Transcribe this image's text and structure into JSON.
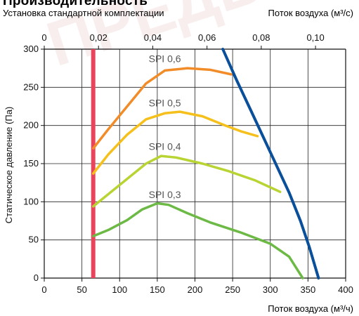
{
  "page": {
    "title": "Производительность",
    "subtitle": "Установка стандартной комплектации",
    "watermark": "ПРЕДВ"
  },
  "chart_data": {
    "type": "line",
    "title": "Производительность",
    "subtitle": "Установка стандартной комплектации",
    "xlabel": "Поток воздуха (м³/ч)",
    "ylabel": "Статическое давление (Па)",
    "x2label": "Поток воздуха (м³/с)",
    "xlim": [
      0,
      400
    ],
    "ylim": [
      0,
      300
    ],
    "x_ticks": [
      0,
      50,
      100,
      150,
      200,
      250,
      300,
      350,
      400
    ],
    "y_ticks": [
      0,
      50,
      100,
      150,
      200,
      250,
      300
    ],
    "x2_ticks": [
      "0",
      "0,02",
      "0,04",
      "0,06",
      "0,08",
      "0,10"
    ],
    "x2_tick_values": [
      0,
      72,
      144,
      216,
      288,
      360
    ],
    "grid": true,
    "series": [
      {
        "name": "SPI 0,6",
        "color": "#f28c28",
        "points": [
          [
            65,
            170
          ],
          [
            85,
            195
          ],
          [
            110,
            225
          ],
          [
            135,
            255
          ],
          [
            160,
            272
          ],
          [
            190,
            275
          ],
          [
            220,
            273
          ],
          [
            248,
            267
          ]
        ]
      },
      {
        "name": "SPI 0,5",
        "color": "#f5c01c",
        "points": [
          [
            65,
            137
          ],
          [
            85,
            162
          ],
          [
            110,
            188
          ],
          [
            135,
            208
          ],
          [
            160,
            216
          ],
          [
            180,
            218
          ],
          [
            210,
            212
          ],
          [
            240,
            200
          ],
          [
            262,
            192
          ],
          [
            283,
            186
          ]
        ]
      },
      {
        "name": "SPI 0,4",
        "color": "#b8d433",
        "points": [
          [
            65,
            94
          ],
          [
            85,
            110
          ],
          [
            110,
            130
          ],
          [
            135,
            150
          ],
          [
            155,
            160
          ],
          [
            175,
            158
          ],
          [
            210,
            150
          ],
          [
            245,
            140
          ],
          [
            280,
            128
          ],
          [
            313,
            113
          ]
        ]
      },
      {
        "name": "SPI 0,3",
        "color": "#6cba45",
        "points": [
          [
            65,
            55
          ],
          [
            85,
            63
          ],
          [
            110,
            76
          ],
          [
            130,
            90
          ],
          [
            150,
            98
          ],
          [
            165,
            96
          ],
          [
            190,
            85
          ],
          [
            220,
            73
          ],
          [
            260,
            60
          ],
          [
            300,
            45
          ],
          [
            325,
            28
          ],
          [
            343,
            0
          ]
        ]
      },
      {
        "name": "",
        "color": "#0a4f9a",
        "points": [
          [
            237,
            300
          ],
          [
            255,
            260
          ],
          [
            275,
            218
          ],
          [
            300,
            165
          ],
          [
            325,
            112
          ],
          [
            340,
            75
          ],
          [
            352,
            40
          ],
          [
            364,
            0
          ]
        ]
      }
    ],
    "reference_lines": [
      {
        "type": "vertical",
        "x": 65,
        "color": "#e8455c"
      }
    ],
    "labels": [
      {
        "text": "SPI 0,6",
        "x": 160,
        "y": 283
      },
      {
        "text": "SPI 0,5",
        "x": 160,
        "y": 225
      },
      {
        "text": "SPI 0,4",
        "x": 160,
        "y": 168
      },
      {
        "text": "SPI 0,3",
        "x": 160,
        "y": 105
      }
    ]
  }
}
